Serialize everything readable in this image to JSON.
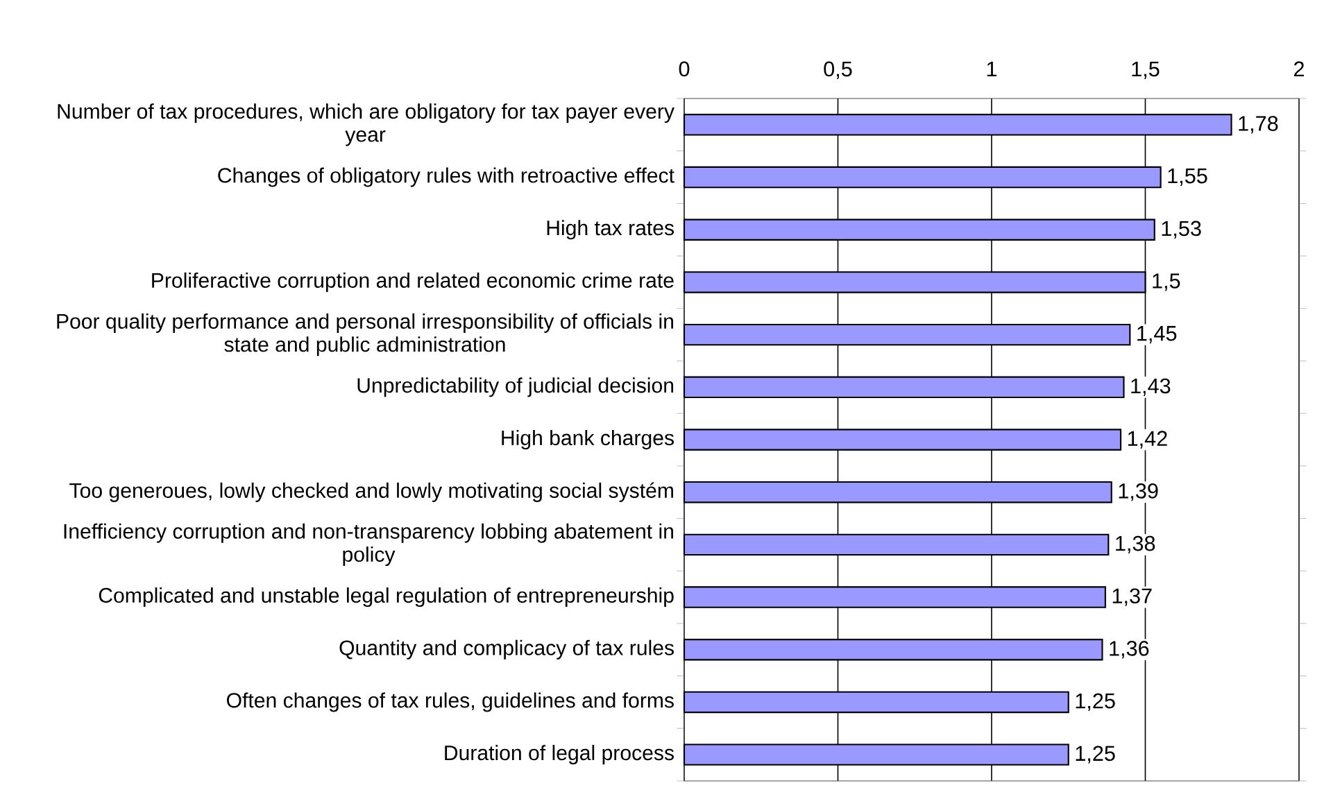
{
  "chart_data": {
    "type": "bar",
    "orientation": "horizontal",
    "categories": [
      "Number of tax procedures, which are obligatory for tax payer every year",
      "Changes of obligatory rules with retroactive effect",
      "High tax rates",
      "Proliferactive corruption and related economic crime rate",
      "Poor quality performance and personal irresponsibility of officials in state and public administration",
      "Unpredictability of judicial decision",
      "High bank charges",
      "Too generoues, lowly checked and lowly motivating social systém",
      "Inefficiency corruption and non-transparency lobbing abatement in policy",
      "Complicated and unstable legal regulation of entrepreneurship",
      "Quantity and complicacy of tax rules",
      "Often changes of tax rules, guidelines and forms",
      "Duration of legal process"
    ],
    "values": [
      1.78,
      1.55,
      1.53,
      1.5,
      1.45,
      1.43,
      1.42,
      1.39,
      1.38,
      1.37,
      1.36,
      1.25,
      1.25
    ],
    "value_labels": [
      "1,78",
      "1,55",
      "1,53",
      "1,5",
      "1,45",
      "1,43",
      "1,42",
      "1,39",
      "1,38",
      "1,37",
      "1,36",
      "1,25",
      "1,25"
    ],
    "color": "#9999ff",
    "xlim": [
      0,
      2
    ],
    "xticks": [
      0,
      {
        "value": 0.5,
        "label": "0,5"
      },
      1,
      {
        "value": 1.5,
        "label": "1,5"
      },
      2
    ],
    "grid": "x"
  }
}
